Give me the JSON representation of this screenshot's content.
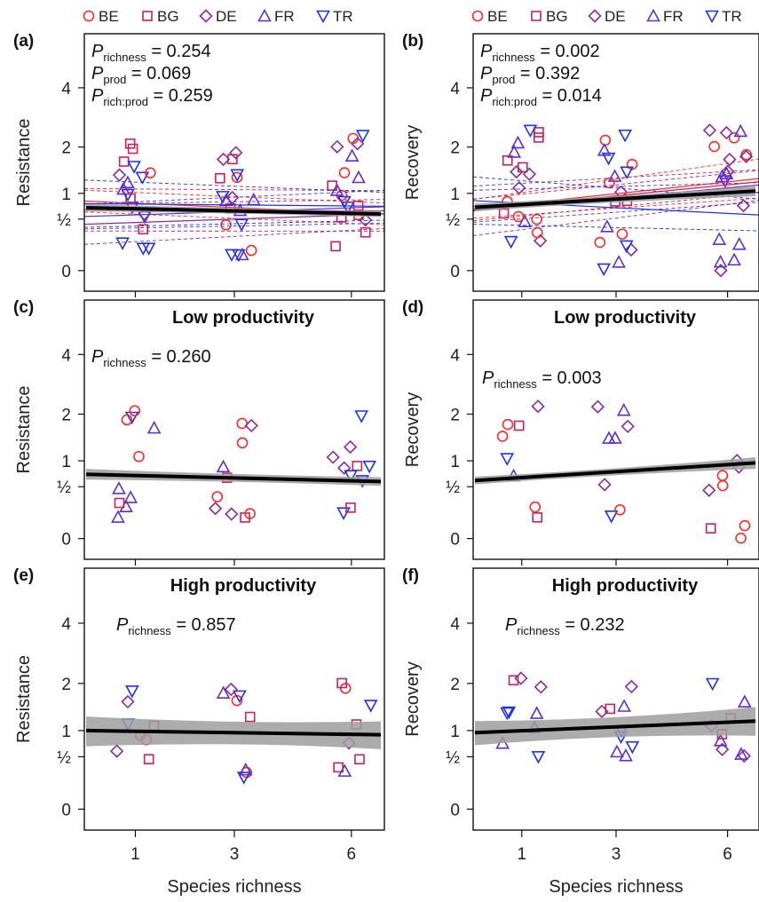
{
  "colors": {
    "BE": "#ff2a2a",
    "BG": "#cc1f5e",
    "DE": "#8a2a9e",
    "FR": "#5b2ed8",
    "TR": "#2030f0",
    "fit_line": "#000000",
    "ci_band": "#9e9e9e"
  },
  "legend": {
    "items": [
      {
        "key": "BE",
        "label": "BE",
        "shape": "circle"
      },
      {
        "key": "BG",
        "label": "BG",
        "shape": "square"
      },
      {
        "key": "DE",
        "label": "DE",
        "shape": "diamond"
      },
      {
        "key": "FR",
        "label": "FR",
        "shape": "triangle-up"
      },
      {
        "key": "TR",
        "label": "TR",
        "shape": "triangle-down"
      }
    ]
  },
  "x_axis": {
    "label": "Species richness",
    "ticks": [
      "1",
      "3",
      "6"
    ]
  },
  "y_axis": {
    "tick_labels": [
      "0",
      "½",
      "1",
      "2",
      "4"
    ]
  },
  "chart_data": [
    {
      "panel": "(a)",
      "type": "scatter",
      "title": "",
      "ylabel": "Resistance",
      "x_categories": [
        "1",
        "3",
        "6"
      ],
      "y_tick_labels": [
        "0",
        "½",
        "1",
        "2",
        "4"
      ],
      "p_values": [
        {
          "P": "P",
          "sub": "richness",
          "value": "= 0.254"
        },
        {
          "P": "P",
          "sub": "prod",
          "value": "= 0.069"
        },
        {
          "P": "P",
          "sub": "rich:prod",
          "value": "= 0.259"
        }
      ],
      "overall_fit": {
        "at_x1": 0.72,
        "at_x6": 0.6,
        "ci_halfwidth": 0.1
      },
      "series_fits": [
        {
          "country": "BE",
          "at_x1": 0.85,
          "at_x6": 0.6
        },
        {
          "country": "BG",
          "at_x1": 0.68,
          "at_x6": 0.66
        },
        {
          "country": "DE",
          "at_x1": 0.45,
          "at_x6": 0.6
        },
        {
          "country": "FR",
          "at_x1": 0.55,
          "at_x6": 0.74
        },
        {
          "country": "TR",
          "at_x1": 0.8,
          "at_x6": 0.75
        }
      ]
    },
    {
      "panel": "(b)",
      "type": "scatter",
      "title": "",
      "ylabel": "Recovery",
      "x_categories": [
        "1",
        "3",
        "6"
      ],
      "y_tick_labels": [
        "0",
        "½",
        "1",
        "2",
        "4"
      ],
      "p_values": [
        {
          "P": "P",
          "sub": "richness",
          "value": "= 0.002"
        },
        {
          "P": "P",
          "sub": "prod",
          "value": "= 0.392"
        },
        {
          "P": "P",
          "sub": "rich:prod",
          "value": "= 0.014"
        }
      ],
      "overall_fit": {
        "at_x1": 0.73,
        "at_x6": 1.05,
        "ci_halfwidth": 0.1
      },
      "series_fits": [
        {
          "country": "BE",
          "at_x1": 0.7,
          "at_x6": 1.32
        },
        {
          "country": "BG",
          "at_x1": 0.68,
          "at_x6": 1.25
        },
        {
          "country": "DE",
          "at_x1": 0.66,
          "at_x6": 1.18
        },
        {
          "country": "FR",
          "at_x1": 0.75,
          "at_x6": 1.02
        },
        {
          "country": "TR",
          "at_x1": 0.86,
          "at_x6": 0.58
        }
      ]
    },
    {
      "panel": "(c)",
      "type": "scatter",
      "title": "Low productivity",
      "ylabel": "Resistance",
      "x_categories": [
        "1",
        "3",
        "6"
      ],
      "y_tick_labels": [
        "0",
        "½",
        "1",
        "2",
        "4"
      ],
      "p_values": [
        {
          "P": "P",
          "sub": "richness",
          "value": "= 0.260"
        }
      ],
      "overall_fit": {
        "at_x1": 0.74,
        "at_x6": 0.6,
        "ci_halfwidth": 0.14
      }
    },
    {
      "panel": "(d)",
      "type": "scatter",
      "title": "Low productivity",
      "ylabel": "Recovery",
      "x_categories": [
        "1",
        "3",
        "6"
      ],
      "y_tick_labels": [
        "0",
        "½",
        "1",
        "2",
        "4"
      ],
      "p_values": [
        {
          "P": "P",
          "sub": "richness",
          "value": "= 0.003"
        }
      ],
      "overall_fit": {
        "at_x1": 0.62,
        "at_x6": 0.96,
        "ci_halfwidth": 0.12
      }
    },
    {
      "panel": "(e)",
      "type": "scatter",
      "title": "High productivity",
      "ylabel": "Resistance",
      "x_categories": [
        "1",
        "3",
        "6"
      ],
      "y_tick_labels": [
        "0",
        "½",
        "1",
        "2",
        "4"
      ],
      "p_values": [
        {
          "P": "P",
          "sub": "richness",
          "value": "= 0.857"
        }
      ],
      "overall_fit": {
        "at_x1": 1.0,
        "at_x6": 0.92,
        "ci_halfwidth": 0.3
      }
    },
    {
      "panel": "(f)",
      "type": "scatter",
      "title": "High productivity",
      "ylabel": "Recovery",
      "x_categories": [
        "1",
        "3",
        "6"
      ],
      "y_tick_labels": [
        "0",
        "½",
        "1",
        "2",
        "4"
      ],
      "p_values": [
        {
          "P": "P",
          "sub": "richness",
          "value": "= 0.232"
        }
      ],
      "overall_fit": {
        "at_x1": 0.96,
        "at_x6": 1.2,
        "ci_halfwidth": 0.25
      }
    }
  ]
}
